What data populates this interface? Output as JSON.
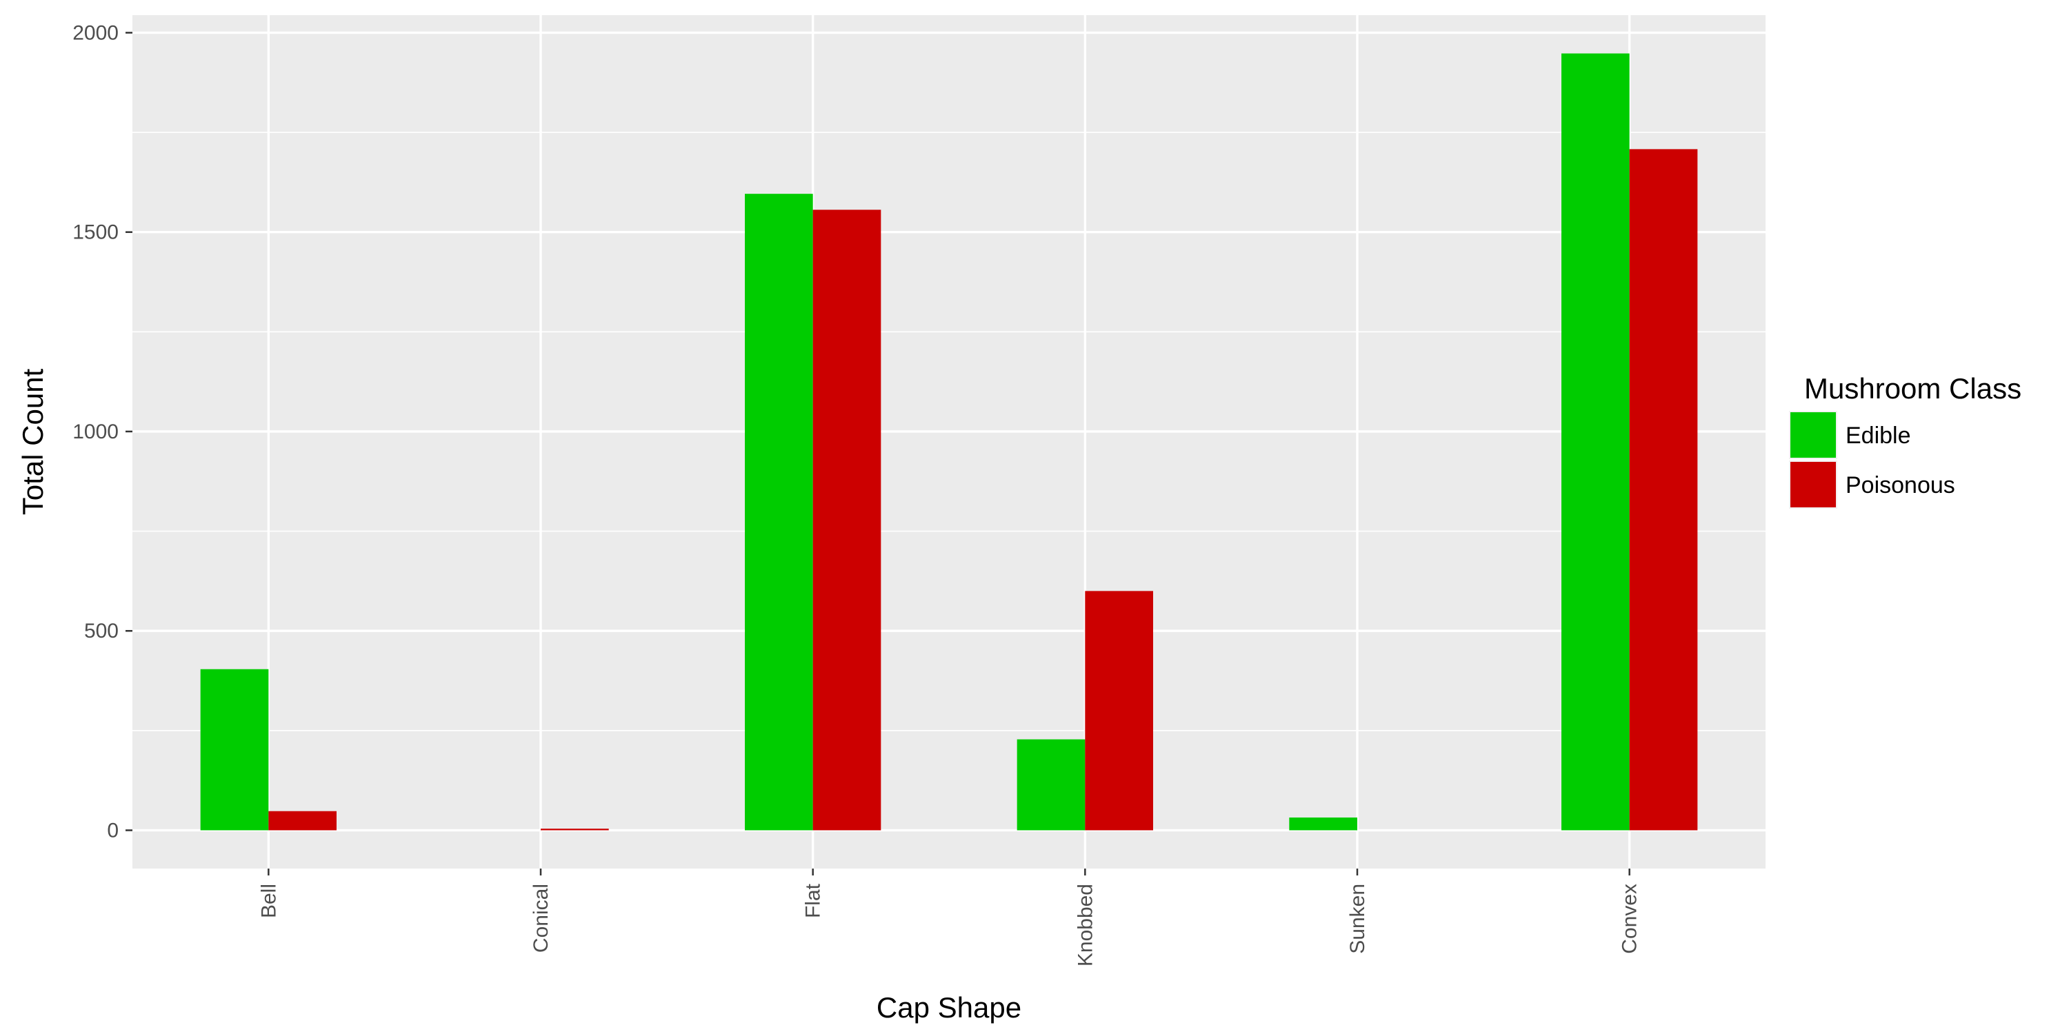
{
  "chart_data": {
    "type": "bar",
    "title": "",
    "xlabel": "Cap Shape",
    "ylabel": "Total Count",
    "categories": [
      "Bell",
      "Conical",
      "Flat",
      "Knobbed",
      "Sunken",
      "Convex"
    ],
    "series": [
      {
        "name": "Edible",
        "color": "#00CC00",
        "values": [
          404,
          0,
          1596,
          228,
          32,
          1948
        ]
      },
      {
        "name": "Poisonous",
        "color": "#CC0000",
        "values": [
          48,
          4,
          1556,
          600,
          0,
          1708
        ]
      }
    ],
    "ylim": [
      -96,
      2044
    ],
    "yticks": [
      0,
      500,
      1000,
      1500,
      2000
    ],
    "grid": true,
    "panel_background": "#EBEBEB",
    "legend": {
      "title": "Mushroom Class",
      "position": "right",
      "entries": [
        "Edible",
        "Poisonous"
      ]
    },
    "x_tick_rotation": "vertical"
  }
}
